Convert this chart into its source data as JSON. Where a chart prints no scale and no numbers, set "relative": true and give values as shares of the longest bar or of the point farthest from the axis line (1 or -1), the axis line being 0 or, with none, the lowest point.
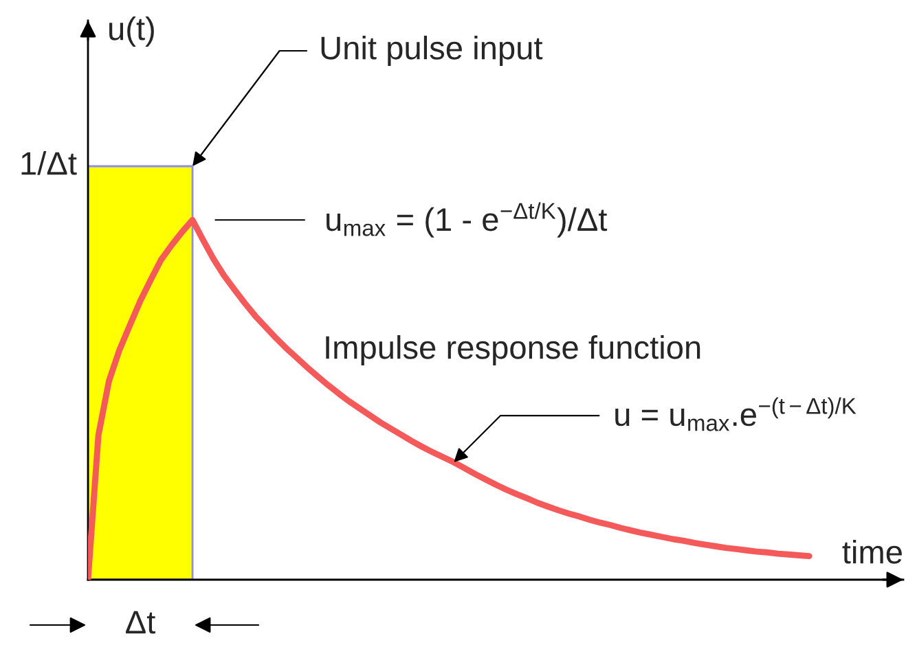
{
  "chart_data": {
    "type": "line",
    "relative": true,
    "xlabel": "time",
    "ylabel": "u(t)",
    "categories": [
      null,
      null,
      null,
      null,
      null,
      null,
      null,
      null,
      null,
      null,
      null,
      null,
      null,
      null,
      null,
      null,
      null,
      null,
      null,
      null,
      null,
      null,
      null,
      null,
      null,
      null,
      null,
      null,
      null,
      null,
      null,
      null,
      null,
      null,
      null,
      null,
      null,
      null,
      null,
      null,
      null,
      null,
      null,
      null,
      null,
      null,
      null,
      null,
      null,
      null,
      null,
      null,
      null,
      null,
      null,
      null,
      null,
      null,
      null,
      null,
      null,
      null,
      null,
      null,
      null,
      null,
      null,
      null,
      null,
      null,
      null,
      null,
      null,
      null,
      null,
      null,
      null,
      null,
      null
    ],
    "series": [
      {
        "type": "area",
        "color": "#ffff00",
        "values": [
          1,
          1,
          1,
          1,
          1,
          1,
          1,
          1,
          1,
          1,
          1,
          null,
          null,
          null,
          null,
          null,
          null,
          null,
          null,
          null,
          null,
          null,
          null,
          null,
          null,
          null,
          null,
          null,
          null,
          null,
          null,
          null,
          null,
          null,
          null,
          null,
          null,
          null,
          null,
          null,
          null,
          null,
          null,
          null,
          null,
          null,
          null,
          null,
          null,
          null,
          null,
          null,
          null,
          null,
          null,
          null,
          null,
          null,
          null,
          null,
          null,
          null,
          null,
          null,
          null,
          null,
          null,
          null,
          null,
          null,
          null,
          null,
          null,
          null,
          null,
          null,
          null,
          null,
          null
        ]
      },
      {
        "color": "#f55a5a",
        "values": [
          0,
          0.35,
          0.48,
          0.555,
          0.615,
          0.674,
          0.725,
          0.774,
          0.809,
          0.841,
          0.87,
          0.822,
          0.776,
          0.736,
          0.702,
          0.669,
          0.638,
          0.611,
          0.584,
          0.559,
          0.536,
          0.513,
          0.491,
          0.47,
          0.45,
          0.431,
          0.414,
          0.397,
          0.38,
          0.365,
          0.35,
          0.335,
          0.321,
          0.308,
          0.296,
          0.284,
          0.27,
          0.256,
          0.243,
          0.23,
          0.218,
          0.207,
          0.197,
          0.186,
          0.177,
          0.168,
          0.16,
          0.153,
          0.145,
          0.138,
          0.132,
          0.125,
          0.119,
          0.113,
          0.108,
          0.103,
          0.098,
          0.094,
          0.089,
          0.085,
          0.081,
          0.077,
          0.074,
          0.071,
          0.068,
          0.066,
          0.063,
          0.061,
          0.059,
          0.057,
          null,
          null,
          null,
          null,
          null,
          null,
          null,
          null,
          null
        ]
      }
    ],
    "annotations": [
      "Unit pulse input",
      "1/Δt",
      "u$_{max}$ = (1 - e$^{−Δt/K}$)/Δt",
      "Impulse response function",
      "u = u$_{max}$.e$^{−(t−Δt)/K}$",
      "Δt"
    ],
    "grid": false,
    "legend": false
  }
}
